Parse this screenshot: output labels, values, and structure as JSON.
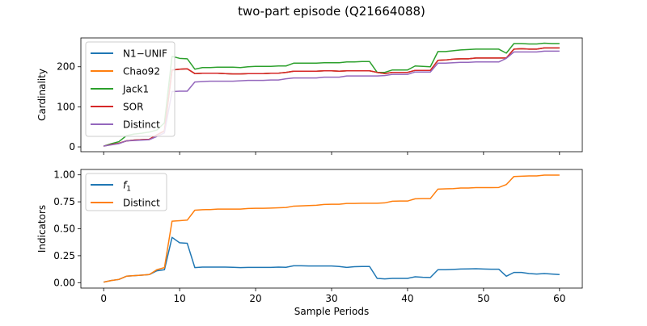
{
  "figure": {
    "title": "two-part episode (Q21664088)"
  },
  "chart_data": [
    {
      "type": "line",
      "ylabel": "Cardinality",
      "xlabel": "",
      "xlim": [
        -3,
        63
      ],
      "ylim": [
        -12,
        272
      ],
      "xticks": [
        0,
        10,
        20,
        30,
        40,
        50,
        60
      ],
      "show_xtick_labels": false,
      "yticks": [
        0,
        100,
        200
      ],
      "ytick_labels": [
        "0",
        "100",
        "200"
      ],
      "grid": false,
      "legend_position": "upper-left",
      "x": [
        0,
        1,
        2,
        3,
        4,
        5,
        6,
        7,
        8,
        9,
        10,
        11,
        12,
        13,
        14,
        15,
        16,
        17,
        18,
        19,
        20,
        21,
        22,
        23,
        24,
        25,
        26,
        27,
        28,
        29,
        30,
        31,
        32,
        33,
        34,
        35,
        36,
        37,
        38,
        39,
        40,
        41,
        42,
        43,
        44,
        45,
        46,
        47,
        48,
        49,
        50,
        51,
        52,
        53,
        54,
        55,
        56,
        57,
        58,
        59,
        60
      ],
      "series": [
        {
          "name": "N1−UNIF",
          "color": "#1f77b4",
          "values": [
            2,
            6,
            9,
            15,
            17,
            18,
            19,
            30,
            40,
            192,
            194,
            195,
            183,
            184,
            184,
            184,
            183,
            182,
            182,
            183,
            183,
            183,
            184,
            184,
            186,
            189,
            189,
            189,
            189,
            190,
            190,
            189,
            190,
            190,
            190,
            190,
            186,
            183,
            186,
            186,
            186,
            191,
            191,
            191,
            216,
            217,
            219,
            220,
            220,
            222,
            222,
            222,
            222,
            222,
            244,
            245,
            244,
            244,
            247,
            247,
            247
          ]
        },
        {
          "name": "Chao92",
          "color": "#ff7f0e",
          "values": [
            2,
            6,
            9,
            15,
            17,
            18,
            19,
            30,
            40,
            192,
            194,
            195,
            183,
            184,
            184,
            184,
            183,
            182,
            182,
            183,
            183,
            183,
            184,
            184,
            186,
            189,
            189,
            189,
            189,
            190,
            190,
            189,
            190,
            190,
            190,
            190,
            186,
            183,
            186,
            186,
            186,
            191,
            191,
            191,
            216,
            217,
            219,
            220,
            220,
            222,
            222,
            222,
            222,
            222,
            244,
            245,
            244,
            244,
            247,
            247,
            247
          ]
        },
        {
          "name": "Jack1",
          "color": "#2ca02c",
          "values": [
            2,
            8,
            13,
            28,
            32,
            34,
            37,
            42,
            60,
            226,
            221,
            220,
            194,
            198,
            198,
            199,
            199,
            199,
            198,
            200,
            201,
            201,
            201,
            202,
            202,
            209,
            209,
            209,
            209,
            210,
            210,
            210,
            212,
            212,
            213,
            213,
            186,
            186,
            192,
            192,
            192,
            202,
            201,
            200,
            238,
            238,
            240,
            242,
            243,
            244,
            244,
            244,
            244,
            234,
            258,
            258,
            257,
            257,
            259,
            258,
            258
          ]
        },
        {
          "name": "SOR",
          "color": "#d62728",
          "values": [
            2,
            6,
            9,
            15,
            17,
            18,
            19,
            30,
            40,
            192,
            194,
            195,
            183,
            184,
            184,
            184,
            183,
            182,
            182,
            183,
            183,
            183,
            184,
            184,
            186,
            189,
            189,
            189,
            189,
            190,
            190,
            189,
            190,
            190,
            190,
            190,
            186,
            183,
            186,
            186,
            186,
            191,
            191,
            191,
            216,
            217,
            219,
            220,
            220,
            222,
            222,
            222,
            222,
            222,
            244,
            245,
            244,
            244,
            247,
            247,
            247
          ]
        },
        {
          "name": "Distinct",
          "color": "#9467bd",
          "values": [
            2,
            5,
            8,
            15,
            16,
            17,
            18,
            26,
            35,
            138,
            139,
            139,
            162,
            163,
            164,
            164,
            164,
            164,
            165,
            166,
            166,
            166,
            167,
            167,
            170,
            172,
            172,
            172,
            172,
            174,
            174,
            174,
            177,
            177,
            177,
            177,
            177,
            178,
            181,
            181,
            181,
            187,
            187,
            187,
            209,
            209,
            210,
            211,
            211,
            212,
            212,
            212,
            212,
            221,
            237,
            237,
            237,
            237,
            239,
            239,
            239
          ]
        }
      ]
    },
    {
      "type": "line",
      "ylabel": "Indicators",
      "xlabel": "Sample Periods",
      "xlim": [
        -3,
        63
      ],
      "ylim": [
        -0.05,
        1.05
      ],
      "xticks": [
        0,
        10,
        20,
        30,
        40,
        50,
        60
      ],
      "xtick_labels": [
        "0",
        "10",
        "20",
        "30",
        "40",
        "50",
        "60"
      ],
      "show_xtick_labels": true,
      "yticks": [
        0,
        0.25,
        0.5,
        0.75,
        1
      ],
      "ytick_labels": [
        "0.00",
        "0.25",
        "0.50",
        "0.75",
        "1.00"
      ],
      "grid": false,
      "legend_position": "upper-left",
      "x": [
        0,
        1,
        2,
        3,
        4,
        5,
        6,
        7,
        8,
        9,
        10,
        11,
        12,
        13,
        14,
        15,
        16,
        17,
        18,
        19,
        20,
        21,
        22,
        23,
        24,
        25,
        26,
        27,
        28,
        29,
        30,
        31,
        32,
        33,
        34,
        35,
        36,
        37,
        38,
        39,
        40,
        41,
        42,
        43,
        44,
        45,
        46,
        47,
        48,
        49,
        50,
        51,
        52,
        53,
        54,
        55,
        56,
        57,
        58,
        59,
        60
      ],
      "series": [
        {
          "name": "f",
          "name_subscript": "1",
          "color": "#1f77b4",
          "values": [
            0.005,
            0.02,
            0.03,
            0.06,
            0.065,
            0.07,
            0.075,
            0.11,
            0.12,
            0.42,
            0.37,
            0.365,
            0.14,
            0.145,
            0.145,
            0.145,
            0.145,
            0.143,
            0.14,
            0.142,
            0.142,
            0.142,
            0.142,
            0.145,
            0.143,
            0.157,
            0.157,
            0.155,
            0.155,
            0.155,
            0.155,
            0.15,
            0.142,
            0.148,
            0.15,
            0.15,
            0.04,
            0.035,
            0.04,
            0.04,
            0.04,
            0.055,
            0.05,
            0.048,
            0.12,
            0.12,
            0.123,
            0.127,
            0.128,
            0.13,
            0.127,
            0.125,
            0.125,
            0.06,
            0.095,
            0.095,
            0.085,
            0.08,
            0.085,
            0.08,
            0.075
          ]
        },
        {
          "name": "Distinct",
          "color": "#ff7f0e",
          "values": [
            0.005,
            0.02,
            0.03,
            0.06,
            0.065,
            0.07,
            0.075,
            0.12,
            0.14,
            0.57,
            0.575,
            0.58,
            0.672,
            0.677,
            0.678,
            0.682,
            0.682,
            0.682,
            0.682,
            0.688,
            0.69,
            0.69,
            0.692,
            0.695,
            0.697,
            0.71,
            0.712,
            0.715,
            0.718,
            0.725,
            0.727,
            0.727,
            0.735,
            0.735,
            0.737,
            0.737,
            0.737,
            0.74,
            0.755,
            0.757,
            0.757,
            0.778,
            0.78,
            0.78,
            0.868,
            0.87,
            0.872,
            0.878,
            0.878,
            0.882,
            0.882,
            0.882,
            0.883,
            0.91,
            0.985,
            0.987,
            0.99,
            0.99,
            0.998,
            0.998,
            0.998
          ]
        }
      ]
    }
  ]
}
